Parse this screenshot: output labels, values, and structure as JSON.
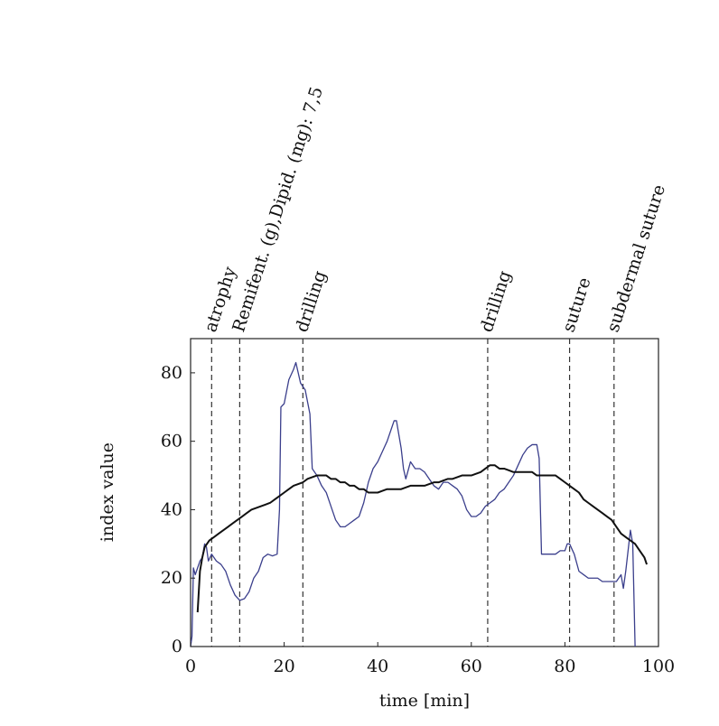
{
  "chart_data": {
    "type": "line",
    "title": "",
    "xlabel": "time [min]",
    "ylabel": "index value",
    "xlim": [
      0,
      100
    ],
    "ylim": [
      0,
      90
    ],
    "xticks": [
      0,
      20,
      40,
      60,
      80,
      100
    ],
    "yticks": [
      0,
      20,
      40,
      60,
      80
    ],
    "grid": false,
    "legend": "none",
    "events": [
      {
        "x": 4.5,
        "label": "atrophy"
      },
      {
        "x": 10.5,
        "label": "Remifent. (g),Dipid. (mg): 7,5"
      },
      {
        "x": 24,
        "label": "drilling"
      },
      {
        "x": 63.5,
        "label": "drilling"
      },
      {
        "x": 81,
        "label": "suture"
      },
      {
        "x": 90.5,
        "label": "subdermal suture"
      }
    ],
    "series": [
      {
        "color": "#3b3f8c",
        "points": [
          [
            0,
            0
          ],
          [
            0.3,
            3
          ],
          [
            0.6,
            23
          ],
          [
            1,
            21
          ],
          [
            1.5,
            23
          ],
          [
            2,
            25
          ],
          [
            2.5,
            26
          ],
          [
            3,
            30
          ],
          [
            3.4,
            29
          ],
          [
            3.8,
            25
          ],
          [
            4.5,
            27
          ],
          [
            5.5,
            25
          ],
          [
            6.5,
            24
          ],
          [
            7.5,
            22
          ],
          [
            8.5,
            18
          ],
          [
            9.5,
            15
          ],
          [
            10.5,
            13.5
          ],
          [
            11.5,
            14
          ],
          [
            12.5,
            16
          ],
          [
            13.5,
            20
          ],
          [
            14.5,
            22
          ],
          [
            15.5,
            26
          ],
          [
            16.5,
            27
          ],
          [
            17.5,
            26.5
          ],
          [
            18.5,
            27
          ],
          [
            19,
            40
          ],
          [
            19.3,
            70
          ],
          [
            20,
            71
          ],
          [
            21,
            78
          ],
          [
            22,
            81
          ],
          [
            22.5,
            83
          ],
          [
            23,
            80
          ],
          [
            23.5,
            77
          ],
          [
            24.5,
            75
          ],
          [
            25.5,
            68
          ],
          [
            26,
            52
          ],
          [
            27,
            50
          ],
          [
            28,
            47
          ],
          [
            29,
            45
          ],
          [
            30,
            41
          ],
          [
            31,
            37
          ],
          [
            32,
            35
          ],
          [
            33,
            35
          ],
          [
            34,
            36
          ],
          [
            35,
            37
          ],
          [
            36,
            38
          ],
          [
            37,
            42
          ],
          [
            38,
            48
          ],
          [
            39,
            52
          ],
          [
            40,
            54
          ],
          [
            41,
            57
          ],
          [
            42,
            60
          ],
          [
            43,
            64
          ],
          [
            43.5,
            66
          ],
          [
            44,
            66
          ],
          [
            44.5,
            62
          ],
          [
            45,
            58
          ],
          [
            45.5,
            52
          ],
          [
            46,
            49
          ],
          [
            47,
            54
          ],
          [
            48,
            52
          ],
          [
            49,
            52
          ],
          [
            50,
            51
          ],
          [
            51,
            49
          ],
          [
            52,
            47
          ],
          [
            53,
            46
          ],
          [
            54,
            48
          ],
          [
            55,
            48
          ],
          [
            56,
            47
          ],
          [
            57,
            46
          ],
          [
            58,
            44
          ],
          [
            59,
            40
          ],
          [
            60,
            38
          ],
          [
            61,
            38
          ],
          [
            62,
            39
          ],
          [
            63,
            41
          ],
          [
            64,
            42
          ],
          [
            65,
            43
          ],
          [
            66,
            45
          ],
          [
            67,
            46
          ],
          [
            68,
            48
          ],
          [
            69,
            50
          ],
          [
            70,
            53
          ],
          [
            71,
            56
          ],
          [
            72,
            58
          ],
          [
            73,
            59
          ],
          [
            74,
            59
          ],
          [
            74.5,
            55
          ],
          [
            75,
            27
          ],
          [
            76,
            27
          ],
          [
            77,
            27
          ],
          [
            78,
            27
          ],
          [
            79,
            28
          ],
          [
            80,
            28
          ],
          [
            80.5,
            30
          ],
          [
            81,
            30
          ],
          [
            82,
            27
          ],
          [
            83,
            22
          ],
          [
            84,
            21
          ],
          [
            85,
            20
          ],
          [
            86,
            20
          ],
          [
            87,
            20
          ],
          [
            88,
            19
          ],
          [
            89,
            19
          ],
          [
            90,
            19
          ],
          [
            91,
            19
          ],
          [
            92,
            21
          ],
          [
            92.5,
            17
          ],
          [
            93,
            22
          ],
          [
            94,
            34
          ],
          [
            94.5,
            30
          ],
          [
            95,
            0
          ]
        ]
      },
      {
        "color": "#111111",
        "points": [
          [
            1.5,
            10
          ],
          [
            2,
            22
          ],
          [
            2.5,
            26
          ],
          [
            3,
            29
          ],
          [
            4,
            31
          ],
          [
            5,
            32
          ],
          [
            6,
            33
          ],
          [
            7,
            34
          ],
          [
            8,
            35
          ],
          [
            9,
            36
          ],
          [
            10,
            37
          ],
          [
            11,
            38
          ],
          [
            12,
            39
          ],
          [
            13,
            40
          ],
          [
            14,
            40.5
          ],
          [
            15,
            41
          ],
          [
            16,
            41.5
          ],
          [
            17,
            42
          ],
          [
            18,
            43
          ],
          [
            19,
            44
          ],
          [
            20,
            45
          ],
          [
            21,
            46
          ],
          [
            22,
            47
          ],
          [
            23,
            47.5
          ],
          [
            24,
            48
          ],
          [
            25,
            49
          ],
          [
            26,
            49.5
          ],
          [
            27,
            50
          ],
          [
            28,
            50
          ],
          [
            29,
            50
          ],
          [
            30,
            49
          ],
          [
            31,
            49
          ],
          [
            32,
            48
          ],
          [
            33,
            48
          ],
          [
            34,
            47
          ],
          [
            35,
            47
          ],
          [
            36,
            46
          ],
          [
            37,
            46
          ],
          [
            38,
            45
          ],
          [
            39,
            45
          ],
          [
            40,
            45
          ],
          [
            41,
            45.5
          ],
          [
            42,
            46
          ],
          [
            43,
            46
          ],
          [
            44,
            46
          ],
          [
            45,
            46
          ],
          [
            46,
            46.5
          ],
          [
            47,
            47
          ],
          [
            48,
            47
          ],
          [
            49,
            47
          ],
          [
            50,
            47
          ],
          [
            51,
            47.5
          ],
          [
            52,
            48
          ],
          [
            53,
            48
          ],
          [
            54,
            48.5
          ],
          [
            55,
            49
          ],
          [
            56,
            49
          ],
          [
            57,
            49.5
          ],
          [
            58,
            50
          ],
          [
            59,
            50
          ],
          [
            60,
            50
          ],
          [
            61,
            50.5
          ],
          [
            62,
            51
          ],
          [
            63,
            52
          ],
          [
            64,
            53
          ],
          [
            65,
            53
          ],
          [
            66,
            52
          ],
          [
            67,
            52
          ],
          [
            68,
            51.5
          ],
          [
            69,
            51
          ],
          [
            70,
            51
          ],
          [
            71,
            51
          ],
          [
            72,
            51
          ],
          [
            73,
            51
          ],
          [
            74,
            50
          ],
          [
            75,
            50
          ],
          [
            76,
            50
          ],
          [
            77,
            50
          ],
          [
            78,
            50
          ],
          [
            79,
            49
          ],
          [
            80,
            48
          ],
          [
            81,
            47
          ],
          [
            82,
            46
          ],
          [
            83,
            45
          ],
          [
            84,
            43
          ],
          [
            85,
            42
          ],
          [
            86,
            41
          ],
          [
            87,
            40
          ],
          [
            88,
            39
          ],
          [
            89,
            38
          ],
          [
            90,
            37
          ],
          [
            91,
            35
          ],
          [
            92,
            33
          ],
          [
            93,
            32
          ],
          [
            94,
            31
          ],
          [
            95,
            30
          ],
          [
            96,
            28
          ],
          [
            97,
            26
          ],
          [
            97.5,
            24
          ]
        ]
      }
    ]
  }
}
